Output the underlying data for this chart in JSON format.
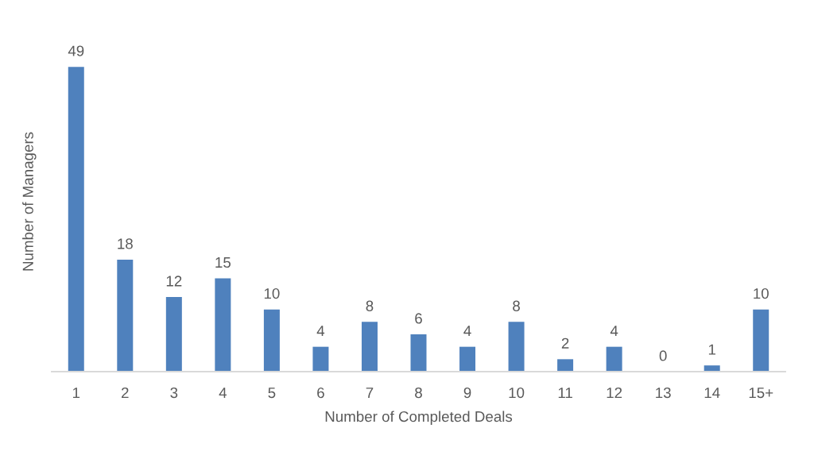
{
  "chart_data": {
    "type": "bar",
    "xlabel": "Number of Completed Deals",
    "ylabel": "Number of Managers",
    "categories": [
      "1",
      "2",
      "3",
      "4",
      "5",
      "6",
      "7",
      "8",
      "9",
      "10",
      "11",
      "12",
      "13",
      "14",
      "15+"
    ],
    "values": [
      49,
      18,
      12,
      15,
      10,
      4,
      8,
      6,
      4,
      8,
      2,
      4,
      0,
      1,
      10
    ],
    "color": "#4f81bd",
    "data_labels": true
  }
}
